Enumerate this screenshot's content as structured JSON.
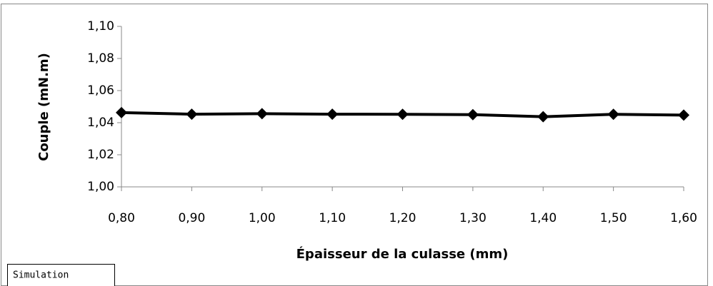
{
  "chart_data": {
    "type": "line",
    "xlabel": "Épaisseur de la culasse (mm)",
    "ylabel": "Couple (mN.m)",
    "x": [
      0.8,
      0.9,
      1.0,
      1.1,
      1.2,
      1.3,
      1.4,
      1.5,
      1.6
    ],
    "series": [
      {
        "name": "Simulation",
        "color": "#000000",
        "values": [
          1.0463,
          1.0453,
          1.0456,
          1.0453,
          1.0452,
          1.045,
          1.0437,
          1.0452,
          1.0447
        ]
      }
    ],
    "xlim": [
      0.8,
      1.6
    ],
    "xticks": [
      {
        "value": 0.8,
        "label": "0,80"
      },
      {
        "value": 0.9,
        "label": "0,90"
      },
      {
        "value": 1.0,
        "label": "1,00"
      },
      {
        "value": 1.1,
        "label": "1,10"
      },
      {
        "value": 1.2,
        "label": "1,20"
      },
      {
        "value": 1.3,
        "label": "1,30"
      },
      {
        "value": 1.4,
        "label": "1,40"
      },
      {
        "value": 1.5,
        "label": "1,50"
      },
      {
        "value": 1.6,
        "label": "1,60"
      }
    ],
    "ylim": [
      1.0,
      1.1
    ],
    "yticks": [
      {
        "value": 1.0,
        "label": "1,00"
      },
      {
        "value": 1.02,
        "label": "1,02"
      },
      {
        "value": 1.04,
        "label": "1,04"
      },
      {
        "value": 1.06,
        "label": "1,06"
      },
      {
        "value": 1.08,
        "label": "1,08"
      },
      {
        "value": 1.1,
        "label": "1,10"
      }
    ],
    "grid": false
  }
}
